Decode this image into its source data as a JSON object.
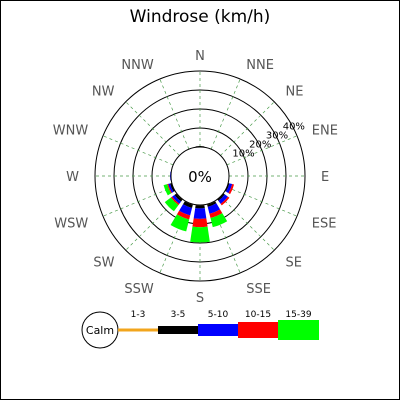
{
  "chart_data": {
    "type": "windrose",
    "title": "Windrose (km/h)",
    "directions": [
      "N",
      "NNE",
      "NE",
      "ENE",
      "E",
      "ESE",
      "SE",
      "SSE",
      "S",
      "SSW",
      "SW",
      "WSW",
      "W",
      "WNW",
      "NW",
      "NNW"
    ],
    "ring_labels": [
      "10%",
      "20%",
      "30%",
      "40%"
    ],
    "rings_percent": [
      10,
      20,
      30,
      40
    ],
    "calm_label": "0%",
    "calm_percent": 0,
    "series": [
      {
        "name": "1-3",
        "color": "#f2a51c",
        "values": [
          0.2,
          0,
          0,
          0,
          0,
          0.2,
          0.2,
          0.3,
          0.3,
          0.3,
          0.3,
          0.2,
          0,
          0,
          0,
          0
        ]
      },
      {
        "name": "3-5",
        "color": "#000000",
        "values": [
          0.3,
          0,
          0,
          0,
          0,
          0.5,
          0.8,
          1.2,
          1.5,
          1.8,
          1.2,
          0.8,
          0,
          0,
          0,
          0
        ]
      },
      {
        "name": "5-10",
        "color": "#0000ff",
        "values": [
          0,
          0,
          0,
          0,
          0,
          1.5,
          2,
          3.7,
          5.5,
          4,
          1.5,
          1,
          0.5,
          0,
          0,
          0
        ]
      },
      {
        "name": "10-15",
        "color": "#ff0000",
        "values": [
          0,
          0,
          0,
          0,
          0,
          1,
          1,
          2.3,
          4.4,
          2.2,
          0.8,
          0.5,
          0,
          0,
          0,
          0
        ]
      },
      {
        "name": "15-39",
        "color": "#00ff00",
        "values": [
          0,
          0,
          0,
          0,
          0,
          0,
          0,
          5,
          8,
          6.5,
          4,
          2,
          0,
          0,
          0,
          0
        ]
      }
    ]
  },
  "legend": {
    "calm": "Calm",
    "bins": [
      "1-3",
      "3-5",
      "5-10",
      "10-15",
      "15-39"
    ]
  }
}
